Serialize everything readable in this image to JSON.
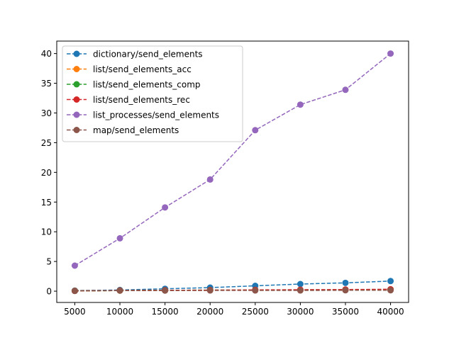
{
  "chart_data": {
    "type": "line",
    "x": [
      5000,
      10000,
      15000,
      20000,
      25000,
      30000,
      35000,
      40000
    ],
    "xlim": [
      3000,
      42000
    ],
    "ylim": [
      -1.9,
      42.1
    ],
    "xticks": [
      5000,
      10000,
      15000,
      20000,
      25000,
      30000,
      35000,
      40000
    ],
    "yticks": [
      0,
      5,
      10,
      15,
      20,
      25,
      30,
      35,
      40
    ],
    "grid": false,
    "legend_position": "top-left",
    "series": [
      {
        "name": "dictionary/send_elements",
        "color": "#1f77b4",
        "values": [
          0.1,
          0.2,
          0.4,
          0.6,
          0.9,
          1.2,
          1.4,
          1.7
        ]
      },
      {
        "name": "list/send_elements_acc",
        "color": "#ff7f0e",
        "values": [
          0.05,
          0.1,
          0.12,
          0.15,
          0.18,
          0.2,
          0.22,
          0.25
        ]
      },
      {
        "name": "list/send_elements_comp",
        "color": "#2ca02c",
        "values": [
          0.05,
          0.1,
          0.15,
          0.18,
          0.2,
          0.22,
          0.25,
          0.3
        ]
      },
      {
        "name": "list/send_elements_rec",
        "color": "#d62728",
        "values": [
          0.05,
          0.12,
          0.15,
          0.18,
          0.22,
          0.25,
          0.28,
          0.32
        ]
      },
      {
        "name": "list_processes/send_elements",
        "color": "#9467bd",
        "values": [
          4.3,
          8.9,
          14.1,
          18.8,
          27.1,
          31.4,
          33.9,
          40.0
        ]
      },
      {
        "name": "map/send_elements",
        "color": "#8c564b",
        "values": [
          0.05,
          0.1,
          0.1,
          0.12,
          0.12,
          0.12,
          0.15,
          0.15
        ]
      }
    ]
  }
}
